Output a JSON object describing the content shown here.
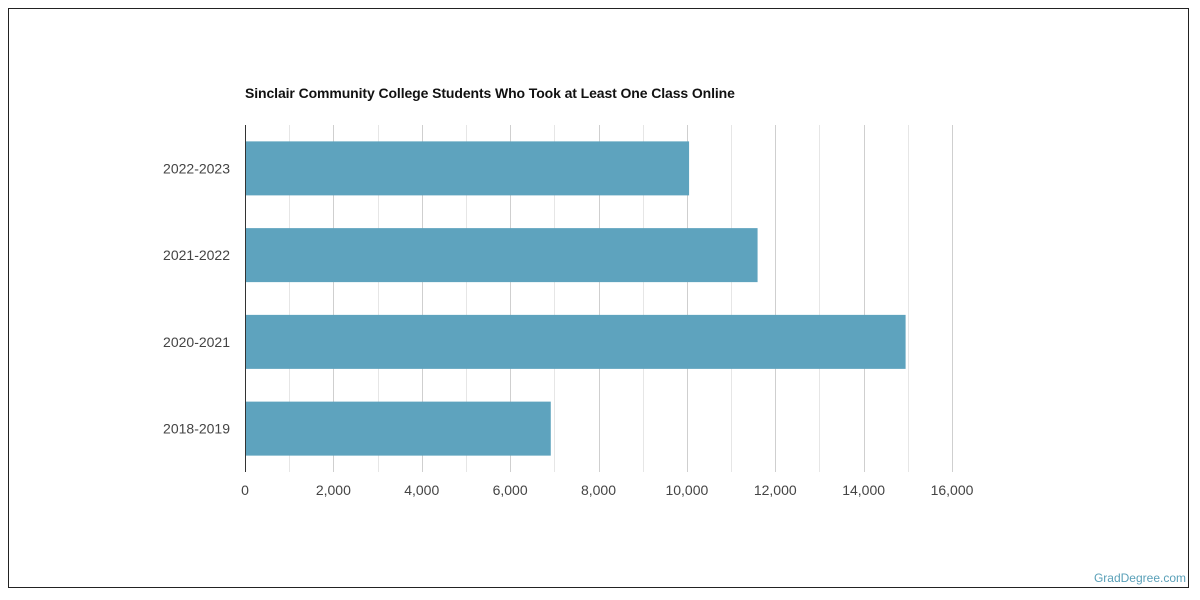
{
  "chart_data": {
    "type": "bar",
    "orientation": "horizontal",
    "title": "Sinclair Community College Students Who Took at Least One Class Online",
    "xlabel": "",
    "ylabel": "",
    "categories": [
      "2022-2023",
      "2021-2022",
      "2020-2021",
      "2018-2019"
    ],
    "values": [
      10050,
      11600,
      14950,
      6920
    ],
    "xlim": [
      0,
      16000
    ],
    "x_ticks": [
      "0",
      "2,000",
      "4,000",
      "6,000",
      "8,000",
      "10,000",
      "12,000",
      "14,000",
      "16,000"
    ],
    "grid": true,
    "bar_color": "#5ea3be"
  },
  "credit": "GradDegree.com"
}
